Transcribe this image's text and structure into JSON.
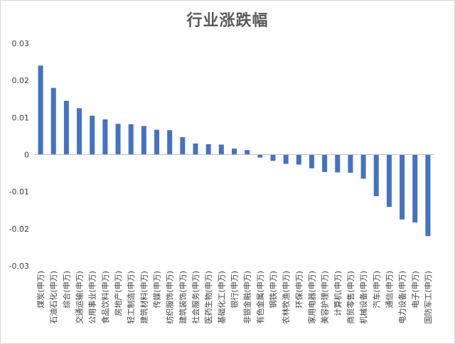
{
  "chart_data": {
    "type": "bar",
    "title": "行业涨跌幅",
    "xlabel": "",
    "ylabel": "",
    "ylim": [
      -0.03,
      0.03
    ],
    "yticks": [
      0.03,
      0.02,
      0.01,
      0,
      -0.01,
      -0.02,
      -0.03
    ],
    "ytick_labels": [
      "0.03",
      "0.02",
      "0.01",
      "0",
      "-0.01",
      "-0.02",
      "-0.03"
    ],
    "grid": false,
    "legend": "none",
    "bar_color": "#4472c4",
    "categories": [
      "煤炭(申万)",
      "石油石化(申万)",
      "综合(申万)",
      "交通运输(申万)",
      "公用事业(申万)",
      "食品饮料(申万)",
      "房地产(申万)",
      "轻工制造(申万)",
      "建筑材料(申万)",
      "传媒(申万)",
      "纺织服饰(申万)",
      "建筑装饰(申万)",
      "社会服务(申万)",
      "医药生物(申万)",
      "基础化工(申万)",
      "银行(申万)",
      "非银金融(申万)",
      "有色金属(申万)",
      "钢铁(申万)",
      "农林牧渔(申万)",
      "环保(申万)",
      "家用电器(申万)",
      "美容护理(申万)",
      "计算机(申万)",
      "商贸零售(申万)",
      "机械设备(申万)",
      "汽车(申万)",
      "通信(申万)",
      "电力设备(申万)",
      "电子(申万)",
      "国防军工(申万)"
    ],
    "values": [
      0.024,
      0.018,
      0.0145,
      0.0125,
      0.0105,
      0.0095,
      0.0083,
      0.0082,
      0.0077,
      0.0067,
      0.0066,
      0.0047,
      0.003,
      0.0028,
      0.0027,
      0.0016,
      0.0012,
      -0.0008,
      -0.0017,
      -0.0025,
      -0.0027,
      -0.0037,
      -0.0047,
      -0.0048,
      -0.0049,
      -0.0065,
      -0.0112,
      -0.0141,
      -0.0175,
      -0.0183,
      -0.022
    ]
  }
}
